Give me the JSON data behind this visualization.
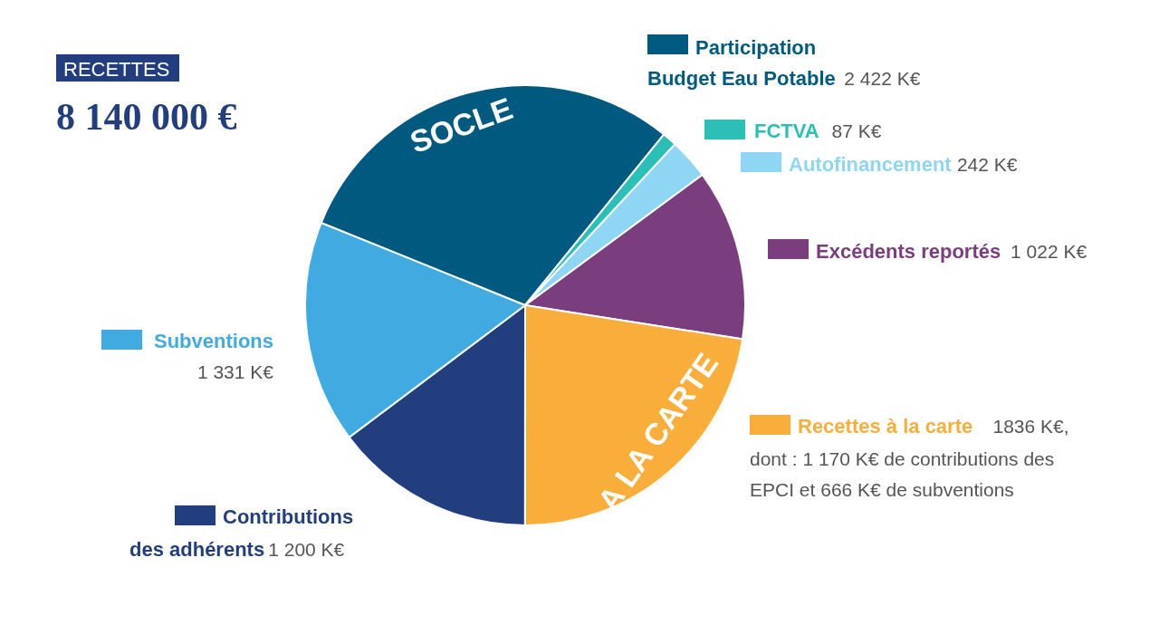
{
  "chart_data": {
    "type": "pie",
    "title": "RECETTES",
    "subtitle": "8 140 000 €",
    "categories": [
      "Participation\nBudget Eau Potable",
      "FCTVA",
      "Autofinancement",
      "Excédents reportés",
      "Recettes à la carte",
      "Contributions\ndes adhérents",
      "Subventions"
    ],
    "values": [
      2422,
      87,
      242,
      1022,
      1836,
      1200,
      1331
    ],
    "value_labels": [
      "2 422 K€",
      "87 K€",
      "242 K€",
      "1 022 K€",
      "1836 K€,",
      "1 200 K€",
      "1 331 K€"
    ],
    "colors": [
      "#005a80",
      "#2bbfb8",
      "#8fd6f5",
      "#7a3e7e",
      "#f9ae3b",
      "#233e7e",
      "#41abe1"
    ],
    "annotations": [
      "SOCLE",
      "A LA CARTE",
      "dont : 1 170 K€ de contributions des EPCI et 666 K€ de subventions"
    ],
    "legend": "right"
  }
}
